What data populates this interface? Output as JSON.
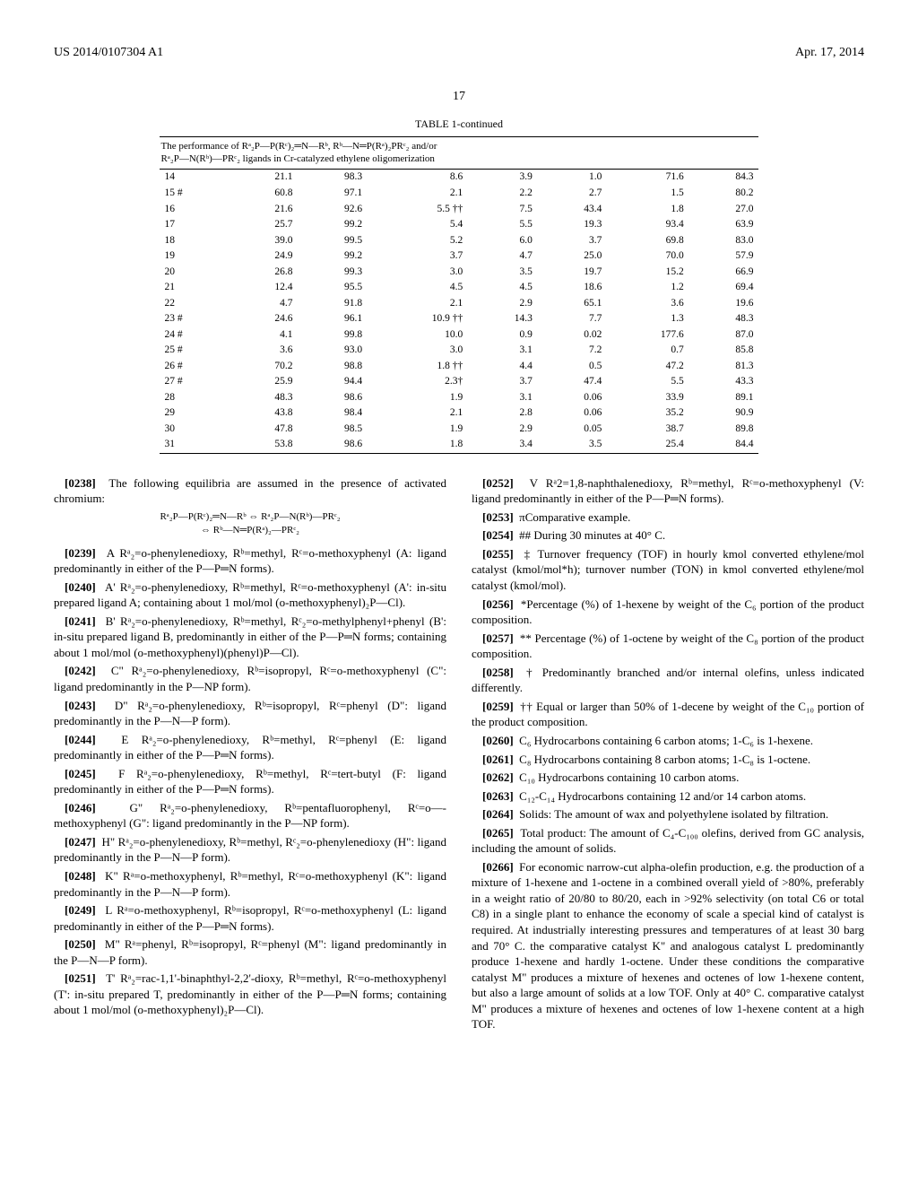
{
  "header": {
    "pub_number": "US 2014/0107304 A1",
    "pub_date": "Apr. 17, 2014",
    "page_number": "17"
  },
  "table": {
    "title": "TABLE 1-continued",
    "caption_line1": "The performance of Rᵃ₂P—P(Rᶜ)₂═N—Rᵇ, Rᵇ—N═P(Rᵃ)₂PRᶜ₂ and/or",
    "caption_line2": "Rᵃ₂P—N(Rᵇ)—PRᶜ₂ ligands in Cr-catalyzed ethylene oligomerization",
    "rows": [
      [
        "14",
        "21.1",
        "98.3",
        "8.6",
        "3.9",
        "1.0",
        "71.6",
        "84.3"
      ],
      [
        "15 #",
        "60.8",
        "97.1",
        "2.1",
        "2.2",
        "2.7",
        "1.5",
        "80.2"
      ],
      [
        "16",
        "21.6",
        "92.6",
        "5.5 ††",
        "7.5",
        "43.4",
        "1.8",
        "27.0"
      ],
      [
        "17",
        "25.7",
        "99.2",
        "5.4",
        "5.5",
        "19.3",
        "93.4",
        "63.9"
      ],
      [
        "18",
        "39.0",
        "99.5",
        "5.2",
        "6.0",
        "3.7",
        "69.8",
        "83.0"
      ],
      [
        "19",
        "24.9",
        "99.2",
        "3.7",
        "4.7",
        "25.0",
        "70.0",
        "57.9"
      ],
      [
        "20",
        "26.8",
        "99.3",
        "3.0",
        "3.5",
        "19.7",
        "15.2",
        "66.9"
      ],
      [
        "21",
        "12.4",
        "95.5",
        "4.5",
        "4.5",
        "18.6",
        "1.2",
        "69.4"
      ],
      [
        "22",
        "4.7",
        "91.8",
        "2.1",
        "2.9",
        "65.1",
        "3.6",
        "19.6"
      ],
      [
        "23 #",
        "24.6",
        "96.1",
        "10.9 ††",
        "14.3",
        "7.7",
        "1.3",
        "48.3"
      ],
      [
        "24 #",
        "4.1",
        "99.8",
        "10.0",
        "0.9",
        "0.02",
        "177.6",
        "87.0"
      ],
      [
        "25 #",
        "3.6",
        "93.0",
        "3.0",
        "3.1",
        "7.2",
        "0.7",
        "85.8"
      ],
      [
        "26 #",
        "70.2",
        "98.8",
        "1.8 ††",
        "4.4",
        "0.5",
        "47.2",
        "81.3"
      ],
      [
        "27 #",
        "25.9",
        "94.4",
        "2.3†",
        "3.7",
        "47.4",
        "5.5",
        "43.3"
      ],
      [
        "28",
        "48.3",
        "98.6",
        "1.9",
        "3.1",
        "0.06",
        "33.9",
        "89.1"
      ],
      [
        "29",
        "43.8",
        "98.4",
        "2.1",
        "2.8",
        "0.06",
        "35.2",
        "90.9"
      ],
      [
        "30",
        "47.8",
        "98.5",
        "1.9",
        "2.9",
        "0.05",
        "38.7",
        "89.8"
      ],
      [
        "31",
        "53.8",
        "98.6",
        "1.8",
        "3.4",
        "3.5",
        "25.4",
        "84.4"
      ]
    ]
  },
  "paras": {
    "p0238": "The following equilibria are assumed in the presence of activated chromium:",
    "equilibria1": "Rᵃ₂P—P(Rᶜ)₂═N—Rᵇ ⇔ Rᵃ₂P—N(Rᵇ)—PRᶜ₂",
    "equilibria2": "⇔ Rᵇ—N═P(Rᵃ)₂—PRᶜ₂",
    "p0239": "A Rᵃ₂=o-phenylenedioxy, Rᵇ=methyl, Rᶜ=o-methoxyphenyl (A: ligand predominantly in either of the P—P═N forms).",
    "p0240": "A' Rᵃ₂=o-phenylenedioxy, Rᵇ=methyl, Rᶜ=o-methoxyphenyl (A': in-situ prepared ligand A; containing about 1 mol/mol (o-methoxyphenyl)₂P—Cl).",
    "p0241": "B' Rᵃ₂=o-phenylenedioxy, Rᵇ=methyl, Rᶜ₂=o-methylphenyl+phenyl (B': in-situ prepared ligand B, predominantly in either of the P—P═N forms; containing about 1 mol/mol (o-methoxyphenyl)(phenyl)P—Cl).",
    "p0242": "C\" Rᵃ₂=o-phenylenedioxy, Rᵇ=isopropyl, Rᶜ=o-methoxyphenyl (C\": ligand predominantly in the P—NP form).",
    "p0243": "D\"   Rᵃ₂=o-phenylenedioxy,   Rᵇ=isopropyl, Rᶜ=phenyl (D\": ligand predominantly in the P—N—P form).",
    "p0244": "E Rᵃ₂=o-phenylenedioxy, Rᵇ=methyl, Rᶜ=phenyl (E: ligand predominantly in either of the P—P═N forms).",
    "p0245": "F Rᵃ₂=o-phenylenedioxy, Rᵇ=methyl, Rᶜ=tert-butyl (F: ligand predominantly in either of the P—P═N forms).",
    "p0246": "G\" Rᵃ₂=o-phenylenedioxy, Rᵇ=pentafluorophenyl, Rᶜ=o—-methoxyphenyl (G\": ligand predominantly in the P—NP form).",
    "p0247": "H\" Rᵃ₂=o-phenylenedioxy, Rᵇ=methyl, Rᶜ₂=o-phenylenedioxy (H\": ligand predominantly in the P—N—P form).",
    "p0248": "K\" Rᵃ=o-methoxyphenyl, Rᵇ=methyl, Rᶜ=o-methoxyphenyl (K\": ligand predominantly in the P—N—P form).",
    "p0249": "L  Rᵃ=o-methoxyphenyl,  Rᵇ=isopropyl,  Rᶜ=o-methoxyphenyl (L: ligand predominantly in either of the P—P═N forms).",
    "p0250": "M\" Rᵃ=phenyl, Rᵇ=isopropyl, Rᶜ=phenyl (M\": ligand predominantly in the P—N—P form).",
    "p0251": "T' Rᵃ₂=rac-1,1'-binaphthyl-2,2'-dioxy, Rᵇ=methyl, Rᶜ=o-methoxyphenyl (T': in-situ prepared T, predominantly in either of the P—P═N forms; containing about 1 mol/mol (o-methoxyphenyl)₂P—Cl).",
    "p0252": "V Rᵃ2=1,8-naphthalenedioxy, Rᵇ=methyl, Rᶜ=o-methoxyphenyl (V: ligand predominantly in either of the P—P═N forms).",
    "p0253": "πComparative example.",
    "p0254": "## During 30 minutes at 40° C.",
    "p0255": "‡ Turnover frequency (TOF) in hourly kmol converted ethylene/mol catalyst (kmol/mol*h); turnover number (TON) in kmol converted ethylene/mol catalyst (kmol/mol).",
    "p0256": "*Percentage (%) of 1-hexene by weight of the C₆ portion of the product composition.",
    "p0257": "** Percentage (%) of 1-octene by weight of the C₈ portion of the product composition.",
    "p0258": "† Predominantly branched and/or internal olefins, unless indicated differently.",
    "p0259": "†† Equal or larger than 50% of 1-decene by weight of the C₁₀ portion of the product composition.",
    "p0260": "C₆ Hydrocarbons containing 6 carbon atoms; 1-C₆ is 1-hexene.",
    "p0261": "C₈ Hydrocarbons containing 8 carbon atoms; 1-C₈ is 1-octene.",
    "p0262": "C₁₀ Hydrocarbons containing 10 carbon atoms.",
    "p0263": "C₁₂-C₁₄ Hydrocarbons containing 12 and/or 14 carbon atoms.",
    "p0264": "Solids: The amount of wax and polyethylene isolated by filtration.",
    "p0265": "Total product: The amount of C₄-C₁₀₀ olefins, derived from GC analysis, including the amount of solids.",
    "p0266": "For economic narrow-cut alpha-olefin production, e.g. the production of a mixture of 1-hexene and 1-octene in a combined overall yield of >80%, preferably in a weight ratio of 20/80 to 80/20, each in >92% selectivity (on total C6 or total C8) in a single plant to enhance the economy of scale a special kind of catalyst is required. At industrially interesting pressures and temperatures of at least 30 barg and 70° C. the comparative catalyst K\" and analogous catalyst L predominantly produce 1-hexene and hardly 1-octene. Under these conditions the comparative catalyst M\" produces a mixture of hexenes and octenes of low 1-hexene content, but also a large amount of solids at a low TOF. Only at 40° C. comparative catalyst M\" produces a mixture of hexenes and octenes of low 1-hexene content at a high TOF."
  }
}
